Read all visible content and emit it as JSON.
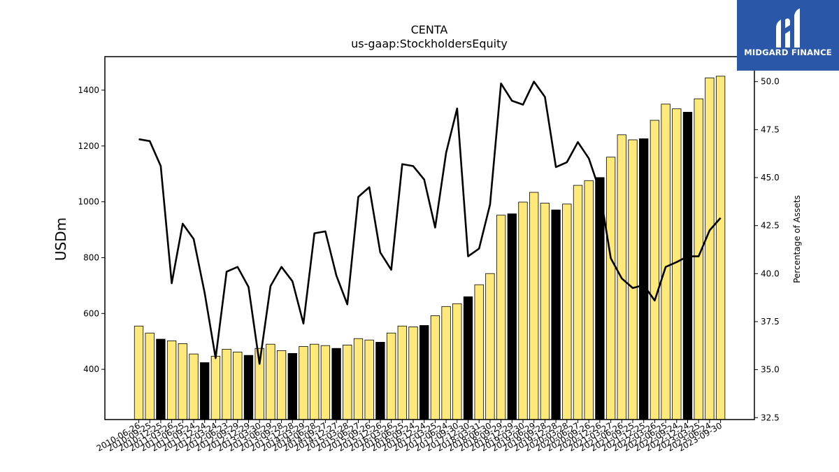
{
  "chart_data": {
    "type": "bar",
    "title": "CENTA",
    "subtitle": "us-gaap:StockholdersEquity",
    "ylabel": "USDm",
    "y2label": "Percentage of Assets",
    "ylim": [
      220,
      1520
    ],
    "y2lim": [
      32.4,
      51.3
    ],
    "yticks": [
      400,
      600,
      800,
      1000,
      1200,
      1400
    ],
    "y2ticks": [
      32.5,
      35.0,
      37.5,
      40.0,
      42.5,
      45.0,
      47.5,
      50.0
    ],
    "bar_color_default": "#ffe97a",
    "bar_color_highlight": "#000000",
    "line_color": "#000000",
    "grid": false,
    "categories": [
      "2010-06-26",
      "2010-09-25",
      "2010-12-25",
      "2011-03-26",
      "2011-06-25",
      "2011-09-24",
      "2011-12-24",
      "2012-03-24",
      "2012-06-23",
      "2012-09-29",
      "2012-12-29",
      "2013-03-30",
      "2013-06-29",
      "2013-09-28",
      "2013-12-28",
      "2014-03-29",
      "2014-06-28",
      "2014-09-27",
      "2014-12-27",
      "2015-03-28",
      "2015-06-27",
      "2015-09-26",
      "2015-12-26",
      "2016-03-26",
      "2016-06-25",
      "2016-09-24",
      "2016-12-24",
      "2017-03-25",
      "2017-06-24",
      "2017-09-30",
      "2017-12-30",
      "2018-03-31",
      "2018-06-30",
      "2018-09-29",
      "2018-12-29",
      "2019-03-30",
      "2019-06-29",
      "2019-09-28",
      "2019-12-28",
      "2020-03-28",
      "2020-06-27",
      "2020-09-26",
      "2020-12-26",
      "2021-03-27",
      "2021-06-26",
      "2021-09-25",
      "2021-12-25",
      "2022-03-26",
      "2022-06-25",
      "2022-09-24",
      "2022-12-24",
      "2023-03-25",
      "2023-06-24",
      "2023-09-30"
    ],
    "series": [
      {
        "kind": "bar",
        "values": [
          555,
          530,
          508,
          502,
          492,
          455,
          424,
          447,
          472,
          462,
          450,
          475,
          490,
          467,
          457,
          482,
          490,
          485,
          475,
          487,
          510,
          505,
          497,
          530,
          555,
          552,
          557,
          592,
          625,
          635,
          660,
          703,
          743,
          952,
          957,
          999,
          1034,
          995,
          971,
          992,
          1059,
          1076,
          1087,
          1160,
          1240,
          1222,
          1226,
          1292,
          1350,
          1333,
          1321,
          1369,
          1444,
          1450
        ],
        "highlight": [
          false,
          false,
          true,
          false,
          false,
          false,
          true,
          false,
          false,
          false,
          true,
          false,
          false,
          false,
          true,
          false,
          false,
          false,
          true,
          false,
          false,
          false,
          true,
          false,
          false,
          false,
          true,
          false,
          false,
          false,
          true,
          false,
          false,
          false,
          true,
          false,
          false,
          false,
          true,
          false,
          false,
          false,
          true,
          false,
          false,
          false,
          true,
          false,
          false,
          false,
          true,
          false,
          false,
          false
        ]
      },
      {
        "kind": "line",
        "axis": "right",
        "values": [
          47.0,
          46.9,
          45.6,
          39.5,
          42.6,
          41.8,
          39.0,
          35.6,
          40.1,
          40.35,
          39.3,
          35.3,
          39.35,
          40.35,
          39.6,
          37.4,
          42.1,
          42.2,
          39.9,
          38.4,
          44.0,
          44.5,
          41.1,
          40.2,
          45.7,
          45.6,
          44.9,
          42.4,
          46.3,
          48.6,
          40.9,
          41.3,
          43.6,
          49.9,
          49.0,
          48.8,
          50.0,
          49.2,
          45.55,
          45.8,
          46.85,
          46.0,
          44.3,
          40.8,
          39.75,
          39.25,
          39.4,
          38.6,
          40.35,
          40.6,
          40.9,
          40.9,
          42.25,
          42.9
        ]
      }
    ]
  },
  "logo": {
    "name": "MIDGARD FINANCE",
    "bg_color": "#2b57a8"
  }
}
